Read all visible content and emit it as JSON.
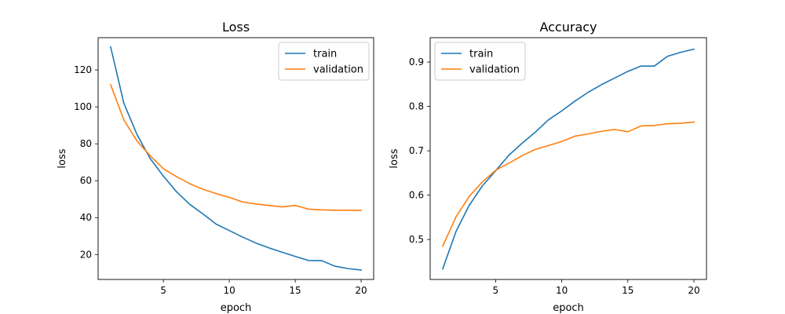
{
  "chart_data": [
    {
      "type": "line",
      "title": "Loss",
      "xlabel": "epoch",
      "ylabel": "loss",
      "xlim": [
        0.05,
        20.95
      ],
      "ylim": [
        6.5,
        137.5
      ],
      "xticks": [
        5,
        10,
        15,
        20
      ],
      "yticks": [
        20,
        40,
        60,
        80,
        100,
        120
      ],
      "grid": false,
      "legend_position": "top-right",
      "x": [
        1,
        2,
        3,
        4,
        5,
        6,
        7,
        8,
        9,
        10,
        11,
        12,
        13,
        14,
        15,
        16,
        17,
        18,
        19,
        20
      ],
      "series": [
        {
          "name": "train",
          "color": "#1f77b4",
          "values": [
            132.5,
            102,
            85,
            72,
            62.5,
            54,
            47.2,
            42,
            36.5,
            33,
            29.5,
            26.3,
            23.6,
            21.3,
            19,
            16.8,
            16.7,
            13.7,
            12.4,
            11.6
          ]
        },
        {
          "name": "validation",
          "color": "#ff7f0e",
          "values": [
            112,
            93,
            81.5,
            73.5,
            66.5,
            62.2,
            58.4,
            55.4,
            53,
            51,
            48.5,
            47.4,
            46.6,
            45.8,
            46.6,
            44.6,
            44.2,
            44,
            44,
            43.9
          ]
        }
      ]
    },
    {
      "type": "line",
      "title": "Accuracy",
      "xlabel": "epoch",
      "ylabel": "loss",
      "xlim": [
        0.05,
        20.95
      ],
      "ylim": [
        0.41,
        0.955
      ],
      "xticks": [
        5,
        10,
        15,
        20
      ],
      "yticks": [
        0.5,
        0.6,
        0.7,
        0.8,
        0.9
      ],
      "grid": false,
      "legend_position": "top-left",
      "x": [
        1,
        2,
        3,
        4,
        5,
        6,
        7,
        8,
        9,
        10,
        11,
        12,
        13,
        14,
        15,
        16,
        17,
        18,
        19,
        20
      ],
      "series": [
        {
          "name": "train",
          "color": "#1f77b4",
          "values": [
            0.434,
            0.518,
            0.577,
            0.621,
            0.655,
            0.69,
            0.717,
            0.742,
            0.77,
            0.79,
            0.812,
            0.832,
            0.849,
            0.864,
            0.879,
            0.891,
            0.891,
            0.913,
            0.922,
            0.929
          ]
        },
        {
          "name": "validation",
          "color": "#ff7f0e",
          "values": [
            0.485,
            0.551,
            0.597,
            0.63,
            0.656,
            0.672,
            0.689,
            0.703,
            0.712,
            0.721,
            0.733,
            0.738,
            0.744,
            0.748,
            0.743,
            0.756,
            0.757,
            0.761,
            0.762,
            0.765
          ]
        }
      ]
    }
  ]
}
